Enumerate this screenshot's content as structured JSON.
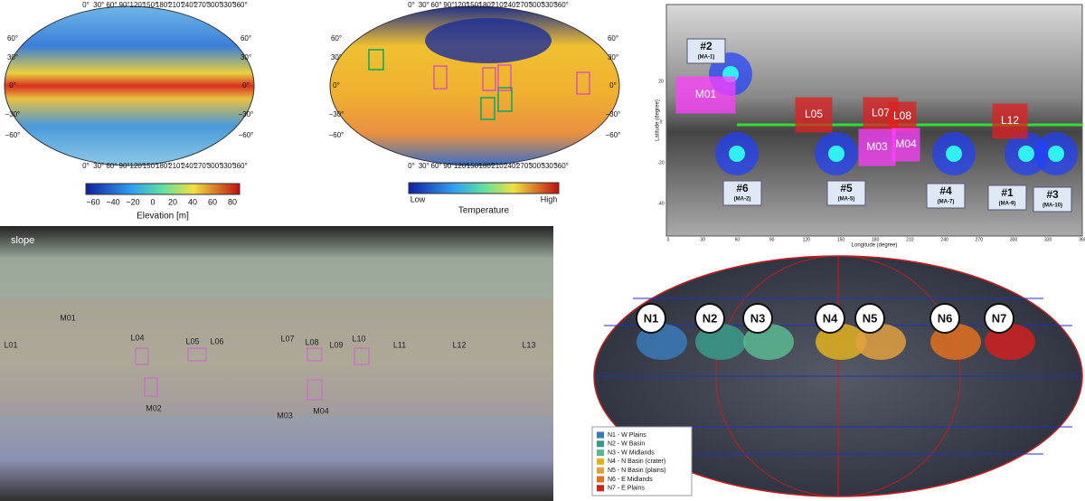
{
  "elevation_map": {
    "lon_ticks": [
      "0°",
      "30°",
      "60°",
      "90°",
      "120°",
      "150°",
      "180°",
      "210°",
      "240°",
      "270°",
      "300°",
      "330°",
      "360°"
    ],
    "lat_ticks": [
      "60°",
      "30°",
      "0°",
      "−30°",
      "−60°"
    ],
    "colorbar_ticks": [
      "−60",
      "−40",
      "−20",
      "0",
      "20",
      "40",
      "60",
      "80"
    ],
    "colorbar_label": "Elevation [m]"
  },
  "temperature_map": {
    "lon_ticks": [
      "0°",
      "30°",
      "60°",
      "90°",
      "120°",
      "150°",
      "180°",
      "210°",
      "240°",
      "270°",
      "300°",
      "330°",
      "360°"
    ],
    "lat_ticks": [
      "60°",
      "30°",
      "0°",
      "−30°",
      "−60°"
    ],
    "colorbar_low": "Low",
    "colorbar_high": "High",
    "colorbar_label": "Temperature"
  },
  "site_map": {
    "y_axis_label": "Latitude (degree)",
    "x_axis_label": "Longitude (degree)",
    "lon_ticks": [
      "0",
      "30",
      "60",
      "90",
      "120",
      "150",
      "180",
      "210",
      "240",
      "270",
      "300",
      "330",
      "360"
    ],
    "lat_ticks": [
      "20",
      "0",
      "-20",
      "-40"
    ],
    "sites": [
      {
        "id": "#2",
        "name": "(MA-1)"
      },
      {
        "id": "#6",
        "name": "(MA-2)"
      },
      {
        "id": "#5",
        "name": "(MA-5)"
      },
      {
        "id": "#4",
        "name": "(MA-7)"
      },
      {
        "id": "#1",
        "name": "(MA-9)"
      },
      {
        "id": "#3",
        "name": "(MA-10)"
      }
    ],
    "regions": [
      "M01",
      "L05",
      "L07",
      "L08",
      "L12",
      "M03",
      "M04"
    ]
  },
  "slope_map": {
    "title": "slope",
    "labels": [
      "M01",
      "L01",
      "L04",
      "L05",
      "L06",
      "L07",
      "L08",
      "L09",
      "L10",
      "L11",
      "L12",
      "L13",
      "M02",
      "M03",
      "M04"
    ]
  },
  "units_map": {
    "units": [
      "N1",
      "N2",
      "N3",
      "N4",
      "N5",
      "N6",
      "N7"
    ],
    "legend": [
      "N1 - W Plains",
      "N2 - W Basin",
      "N3 - W Midlands",
      "N4 - N Basin (crater)",
      "N5 - N Basin (plains)",
      "N6 - E Midlands",
      "N7 - E Plains"
    ]
  }
}
